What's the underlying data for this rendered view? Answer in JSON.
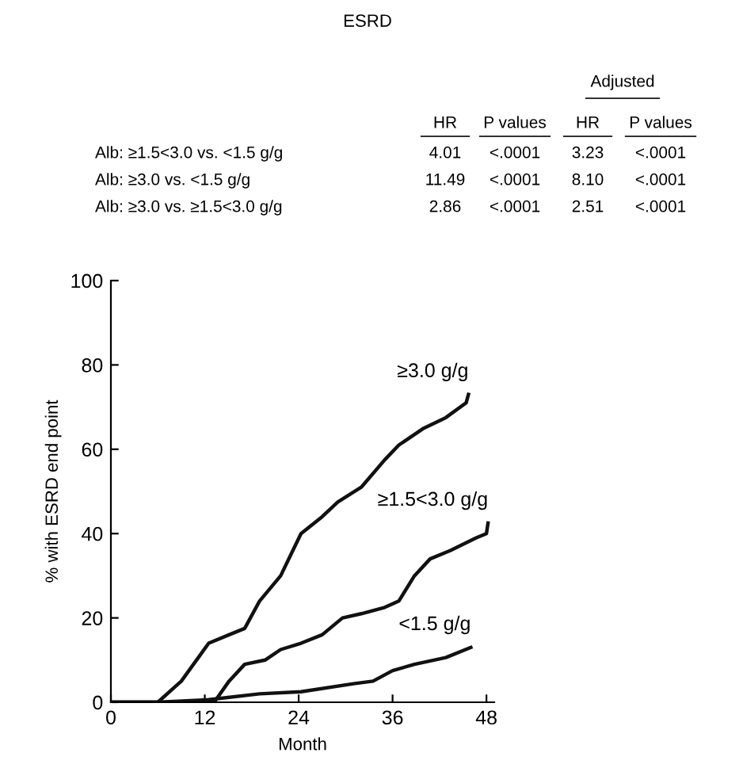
{
  "chart_data": {
    "type": "line",
    "title": "ESRD",
    "xlabel": "Month",
    "ylabel": "% with ESRD end point",
    "xlim": [
      0,
      49
    ],
    "ylim": [
      0,
      100
    ],
    "xticks": [
      0,
      12,
      24,
      36,
      48
    ],
    "yticks": [
      0,
      20,
      40,
      60,
      80,
      100
    ],
    "grid": false,
    "legend": false,
    "marker": "none",
    "line_style": "solid",
    "annotations": [
      "Adjusted",
      "HR",
      "P values",
      "HR",
      "P values",
      "Alb: ≥1.5<3.0 vs. <1.5 g/g",
      "4.01",
      "<.0001",
      "3.23",
      "<.0001",
      "Alb: ≥3.0 vs. <1.5 g/g",
      "11.49",
      "<.0001",
      "8.10",
      "<.0001",
      "Alb: ≥3.0 vs. ≥1.5<3.0 g/g",
      "2.86",
      "<.0001",
      "2.51",
      "<.0001"
    ],
    "series": [
      {
        "name": "≥3.0 g/g",
        "color": "#111111",
        "x": [
          0,
          6,
          9,
          12.5,
          15.1,
          17.1,
          19,
          21.7,
          23,
          24.3,
          27,
          29,
          32,
          35,
          36.8,
          40,
          42.8,
          45.4,
          45.7
        ],
        "values": [
          0,
          0,
          5,
          14,
          16,
          17.5,
          24,
          30,
          35,
          40,
          44,
          47.5,
          51,
          57.5,
          61,
          65,
          67.5,
          71,
          73
        ]
      },
      {
        "name": "≥1.5<3.0 g/g",
        "color": "#111111",
        "x": [
          0,
          13.2,
          15.1,
          17.1,
          19.7,
          21.7,
          24.3,
          27,
          29.6,
          32,
          35,
          36.8,
          38.8,
          40.8,
          43.4,
          46.7,
          48,
          48.2
        ],
        "values": [
          0,
          0,
          5,
          9,
          10,
          12.5,
          14,
          16,
          20,
          21,
          22.5,
          24,
          30,
          34,
          36,
          39,
          40,
          42.5
        ]
      },
      {
        "name": "<1.5 g/g",
        "color": "#111111",
        "x": [
          0,
          6,
          12.5,
          19,
          24.3,
          31,
          33.5,
          36,
          38.8,
          42.8,
          46
        ],
        "values": [
          0,
          0,
          0.6,
          2,
          2.5,
          4.4,
          5,
          7.5,
          9,
          10.6,
          13
        ]
      }
    ]
  }
}
